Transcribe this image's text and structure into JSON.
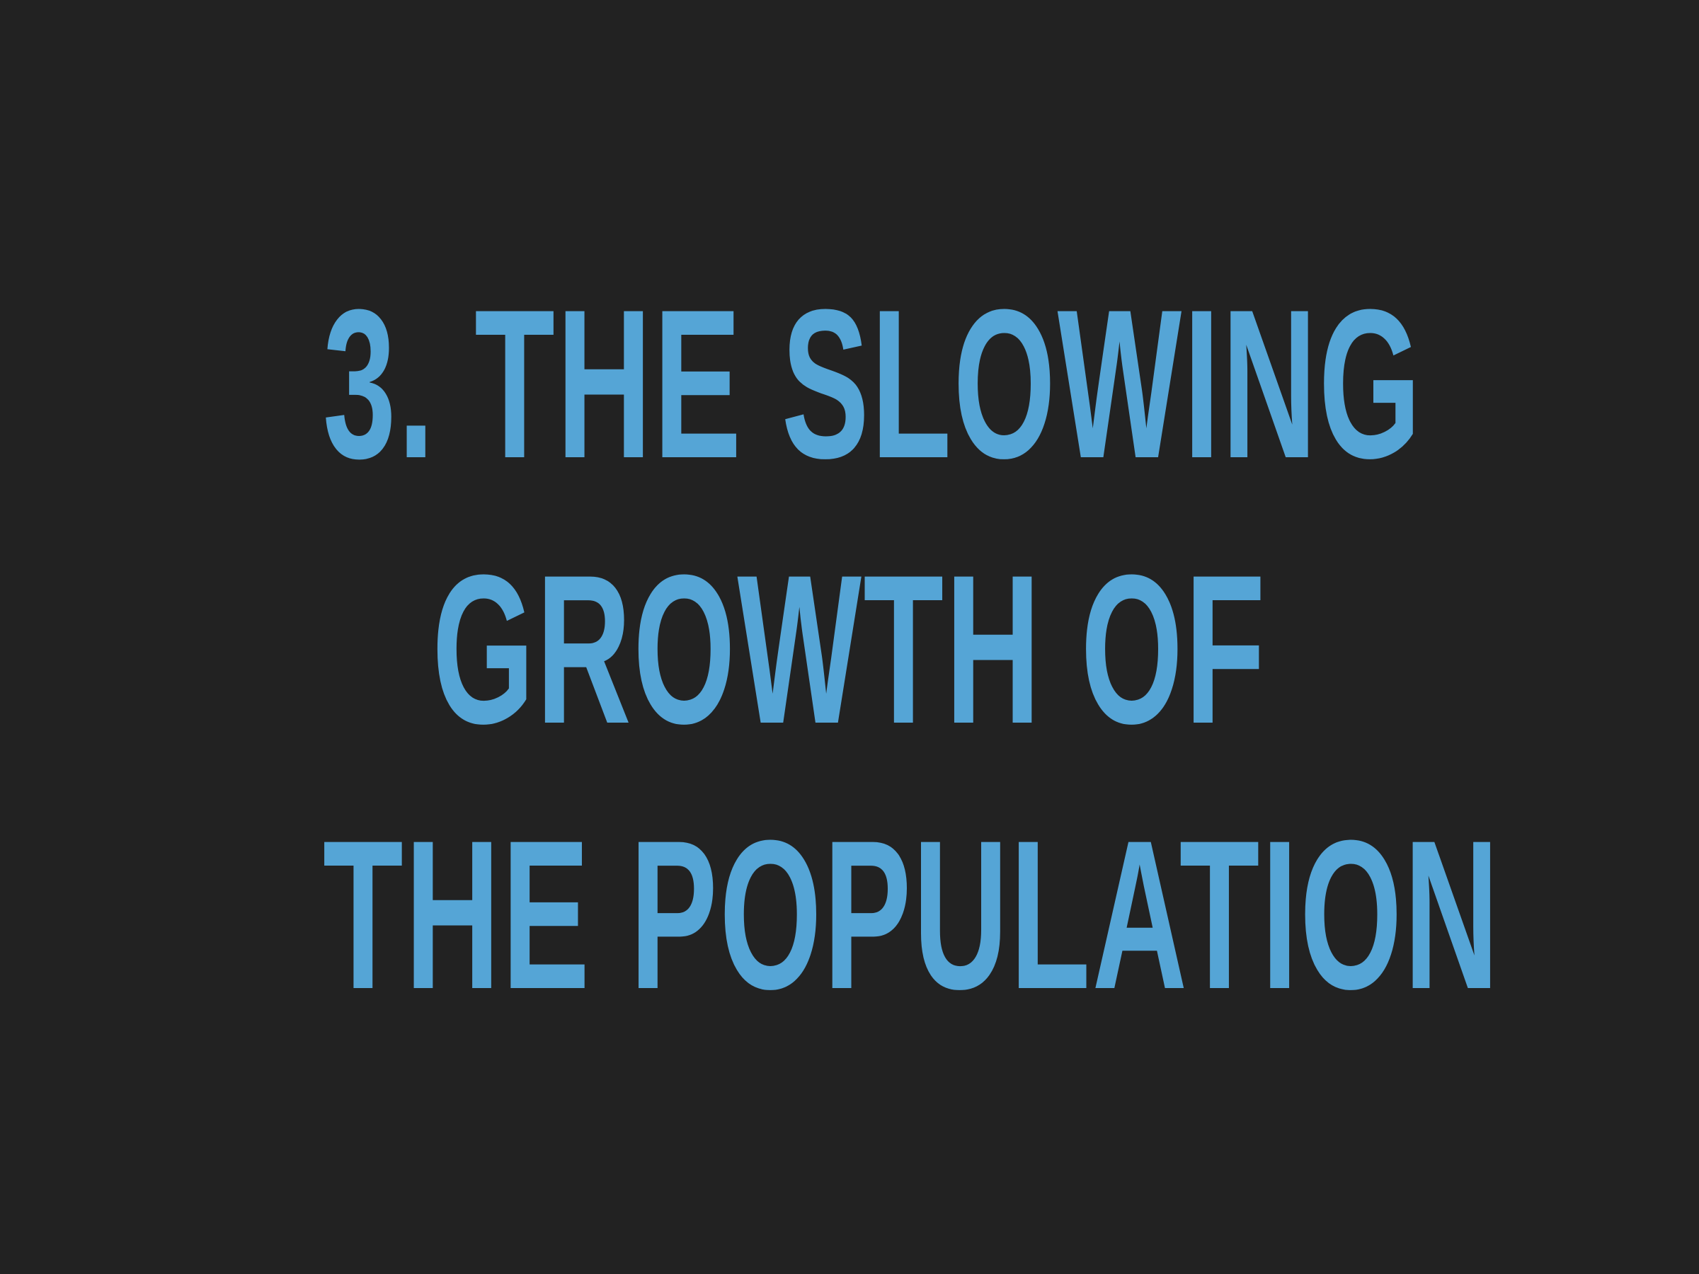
{
  "slide": {
    "title_lines": [
      "3. THE SLOWING",
      "GROWTH OF",
      "THE POPULATION"
    ],
    "colors": {
      "background": "#222222",
      "title": "#55A5D6"
    }
  }
}
